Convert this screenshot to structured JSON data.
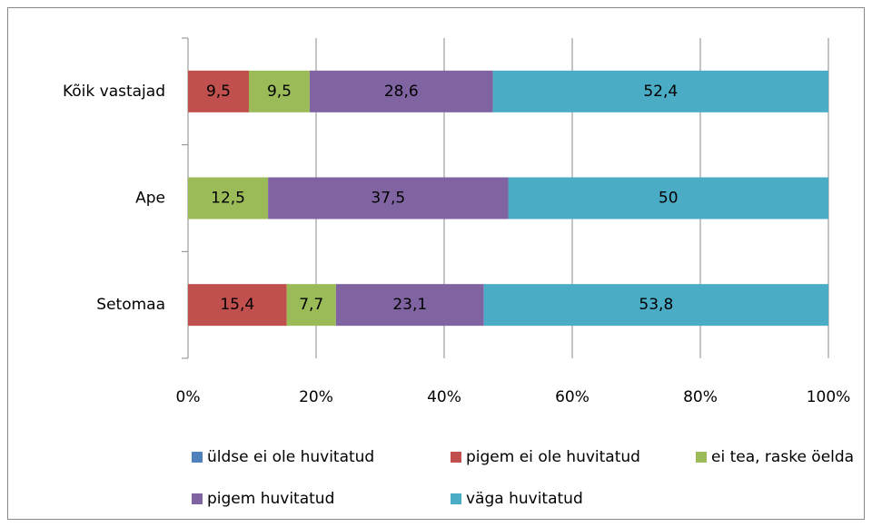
{
  "chart_data": {
    "type": "stacked-bar-horizontal",
    "categories": [
      "Kõik vastajad",
      "Ape",
      "Setomaa"
    ],
    "series": [
      {
        "name": "üldse ei ole huvitatud",
        "color": "#4f81bd",
        "values": [
          0,
          0,
          0
        ],
        "value_labels": [
          null,
          null,
          null
        ]
      },
      {
        "name": "pigem ei ole huvitatud",
        "color": "#c0504d",
        "values": [
          9.5,
          0,
          15.4
        ],
        "value_labels": [
          "9,5",
          null,
          "15,4"
        ]
      },
      {
        "name": "ei tea, raske öelda",
        "color": "#9bbb59",
        "values": [
          9.5,
          12.5,
          7.7
        ],
        "value_labels": [
          "9,5",
          "12,5",
          "7,7"
        ]
      },
      {
        "name": "pigem huvitatud",
        "color": "#8064a2",
        "values": [
          28.6,
          37.5,
          23.1
        ],
        "value_labels": [
          "28,6",
          "37,5",
          "23,1"
        ]
      },
      {
        "name": "väga huvitatud",
        "color": "#4bacc6",
        "values": [
          52.4,
          50,
          53.8
        ],
        "value_labels": [
          "52,4",
          "50",
          "53,8"
        ]
      }
    ],
    "xlim": [
      0,
      100
    ],
    "xticks": [
      {
        "value": 0,
        "label": "0%"
      },
      {
        "value": 20,
        "label": "20%"
      },
      {
        "value": 40,
        "label": "40%"
      },
      {
        "value": 60,
        "label": "60%"
      },
      {
        "value": 80,
        "label": "80%"
      },
      {
        "value": 100,
        "label": "100%"
      }
    ],
    "grid": true
  }
}
